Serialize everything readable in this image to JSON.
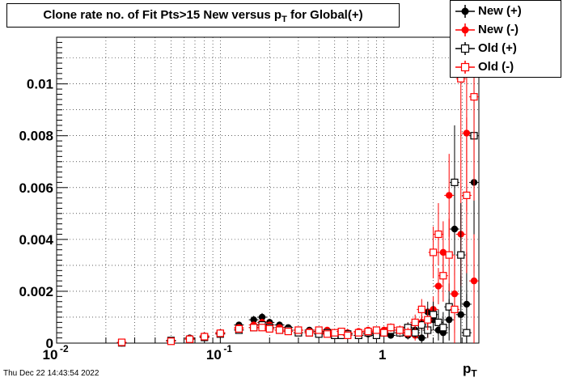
{
  "header": {
    "title_main": "Clone rate no. of Fit Pts>15 New versus p",
    "title_sub": "T",
    "title_tail": " for Global(+)"
  },
  "timestamp": "Thu Dec 22 14:43:54 2022",
  "colors": {
    "new_plus": "#000000",
    "new_minus": "#ff0000",
    "old_plus": "#000000",
    "old_minus": "#ff0000"
  },
  "chart_data": {
    "type": "scatter",
    "xlabel_main": "p",
    "xlabel_sub": "T",
    "xscale": "log",
    "xlim": [
      0.01,
      3.8
    ],
    "ylim": [
      0,
      0.0118
    ],
    "grid": true,
    "legend_position": "top-right",
    "x_ticks": [
      {
        "value": 0.01,
        "label": "10",
        "exp": "-2"
      },
      {
        "value": 0.1,
        "label": "10",
        "exp": "-1"
      },
      {
        "value": 1,
        "label": "1",
        "exp": ""
      }
    ],
    "y_ticks": [
      {
        "value": 0,
        "label": "0"
      },
      {
        "value": 0.002,
        "label": "0.002"
      },
      {
        "value": 0.004,
        "label": "0.004"
      },
      {
        "value": 0.006,
        "label": "0.006"
      },
      {
        "value": 0.008,
        "label": "0.008"
      },
      {
        "value": 0.01,
        "label": "0.01"
      }
    ],
    "series": [
      {
        "name": "New (+)",
        "marker": "filled-circle",
        "color": "#000000",
        "points": [
          {
            "x": 0.025,
            "y": 0.0,
            "err": 2e-05
          },
          {
            "x": 0.05,
            "y": 0.0001,
            "err": 3e-05
          },
          {
            "x": 0.065,
            "y": 0.0002,
            "err": 5e-05
          },
          {
            "x": 0.08,
            "y": 0.00025,
            "err": 5e-05
          },
          {
            "x": 0.1,
            "y": 0.0004,
            "err": 8e-05
          },
          {
            "x": 0.13,
            "y": 0.0007,
            "err": 0.00012
          },
          {
            "x": 0.16,
            "y": 0.0009,
            "err": 0.00015
          },
          {
            "x": 0.18,
            "y": 0.001,
            "err": 0.00016
          },
          {
            "x": 0.2,
            "y": 0.0008,
            "err": 0.00014
          },
          {
            "x": 0.23,
            "y": 0.0007,
            "err": 0.00013
          },
          {
            "x": 0.26,
            "y": 0.0006,
            "err": 0.00012
          },
          {
            "x": 0.3,
            "y": 0.0005,
            "err": 0.00011
          },
          {
            "x": 0.35,
            "y": 0.0005,
            "err": 0.00011
          },
          {
            "x": 0.4,
            "y": 0.00045,
            "err": 0.0001
          },
          {
            "x": 0.45,
            "y": 0.0004,
            "err": 0.0001
          },
          {
            "x": 0.5,
            "y": 0.00035,
            "err": 0.0001
          },
          {
            "x": 0.55,
            "y": 0.0004,
            "err": 0.0001
          },
          {
            "x": 0.6,
            "y": 0.00035,
            "err": 0.0001
          },
          {
            "x": 0.7,
            "y": 0.0003,
            "err": 0.0001
          },
          {
            "x": 0.8,
            "y": 0.00035,
            "err": 0.00011
          },
          {
            "x": 0.9,
            "y": 0.0003,
            "err": 0.00011
          },
          {
            "x": 1.0,
            "y": 0.0004,
            "err": 0.00013
          },
          {
            "x": 1.1,
            "y": 0.0003,
            "err": 0.00013
          },
          {
            "x": 1.25,
            "y": 0.0005,
            "err": 0.00016
          },
          {
            "x": 1.4,
            "y": 0.0003,
            "err": 0.00016
          },
          {
            "x": 1.55,
            "y": 0.0005,
            "err": 0.0002
          },
          {
            "x": 1.7,
            "y": 0.0002,
            "err": 0.0002
          },
          {
            "x": 1.85,
            "y": 0.0012,
            "err": 0.0004
          },
          {
            "x": 2.0,
            "y": 0.0009,
            "err": 0.0004
          },
          {
            "x": 2.15,
            "y": 0.0005,
            "err": 0.0004
          },
          {
            "x": 2.3,
            "y": 0.0004,
            "err": 0.0006
          },
          {
            "x": 2.5,
            "y": 0.0009,
            "err": 0.0008
          },
          {
            "x": 2.7,
            "y": 0.0044,
            "err": 0.0018
          },
          {
            "x": 2.95,
            "y": 0.0011,
            "err": 0.0015
          },
          {
            "x": 3.2,
            "y": 0.0015,
            "err": 0.002
          },
          {
            "x": 3.55,
            "y": 0.0062,
            "err": 0.0035
          }
        ]
      },
      {
        "name": "New (-)",
        "marker": "filled-circle",
        "color": "#ff0000",
        "points": [
          {
            "x": 0.025,
            "y": 2e-05,
            "err": 2e-05
          },
          {
            "x": 0.05,
            "y": 8e-05,
            "err": 3e-05
          },
          {
            "x": 0.065,
            "y": 0.00018,
            "err": 5e-05
          },
          {
            "x": 0.08,
            "y": 0.00028,
            "err": 6e-05
          },
          {
            "x": 0.1,
            "y": 0.0004,
            "err": 8e-05
          },
          {
            "x": 0.13,
            "y": 0.0006,
            "err": 0.00011
          },
          {
            "x": 0.16,
            "y": 0.0007,
            "err": 0.00013
          },
          {
            "x": 0.18,
            "y": 0.0008,
            "err": 0.00014
          },
          {
            "x": 0.2,
            "y": 0.0007,
            "err": 0.00013
          },
          {
            "x": 0.23,
            "y": 0.0006,
            "err": 0.00012
          },
          {
            "x": 0.26,
            "y": 0.0005,
            "err": 0.00011
          },
          {
            "x": 0.3,
            "y": 0.0005,
            "err": 0.00011
          },
          {
            "x": 0.35,
            "y": 0.00045,
            "err": 0.0001
          },
          {
            "x": 0.4,
            "y": 0.0004,
            "err": 0.0001
          },
          {
            "x": 0.45,
            "y": 0.0005,
            "err": 0.0001
          },
          {
            "x": 0.5,
            "y": 0.0004,
            "err": 0.0001
          },
          {
            "x": 0.55,
            "y": 0.0003,
            "err": 0.0001
          },
          {
            "x": 0.6,
            "y": 0.0004,
            "err": 0.0001
          },
          {
            "x": 0.7,
            "y": 0.00045,
            "err": 0.00011
          },
          {
            "x": 0.8,
            "y": 0.0005,
            "err": 0.00012
          },
          {
            "x": 0.9,
            "y": 0.0004,
            "err": 0.00012
          },
          {
            "x": 1.0,
            "y": 0.0005,
            "err": 0.00014
          },
          {
            "x": 1.1,
            "y": 0.0006,
            "err": 0.00016
          },
          {
            "x": 1.25,
            "y": 0.0004,
            "err": 0.00016
          },
          {
            "x": 1.4,
            "y": 0.0006,
            "err": 0.0002
          },
          {
            "x": 1.55,
            "y": 0.0003,
            "err": 0.0002
          },
          {
            "x": 1.7,
            "y": 0.0008,
            "err": 0.0003
          },
          {
            "x": 1.85,
            "y": 0.0005,
            "err": 0.0003
          },
          {
            "x": 2.0,
            "y": 0.0013,
            "err": 0.0005
          },
          {
            "x": 2.15,
            "y": 0.0022,
            "err": 0.0007
          },
          {
            "x": 2.3,
            "y": 0.0035,
            "err": 0.0012
          },
          {
            "x": 2.5,
            "y": 0.0057,
            "err": 0.0016
          },
          {
            "x": 2.7,
            "y": 0.0019,
            "err": 0.0015
          },
          {
            "x": 2.95,
            "y": 0.0042,
            "err": 0.002
          },
          {
            "x": 3.2,
            "y": 0.0081,
            "err": 0.003
          },
          {
            "x": 3.55,
            "y": 0.0024,
            "err": 0.003
          }
        ]
      },
      {
        "name": "Old (+)",
        "marker": "open-square",
        "color": "#000000",
        "points": [
          {
            "x": 0.025,
            "y": 1e-05,
            "err": 2e-05
          },
          {
            "x": 0.05,
            "y": 0.0001,
            "err": 3e-05
          },
          {
            "x": 0.065,
            "y": 0.00015,
            "err": 5e-05
          },
          {
            "x": 0.08,
            "y": 0.00022,
            "err": 5e-05
          },
          {
            "x": 0.1,
            "y": 0.00035,
            "err": 8e-05
          },
          {
            "x": 0.13,
            "y": 0.0005,
            "err": 0.0001
          },
          {
            "x": 0.16,
            "y": 0.0006,
            "err": 0.00012
          },
          {
            "x": 0.18,
            "y": 0.0007,
            "err": 0.00013
          },
          {
            "x": 0.2,
            "y": 0.0006,
            "err": 0.00012
          },
          {
            "x": 0.23,
            "y": 0.0005,
            "err": 0.00011
          },
          {
            "x": 0.26,
            "y": 0.0005,
            "err": 0.00011
          },
          {
            "x": 0.3,
            "y": 0.0004,
            "err": 0.0001
          },
          {
            "x": 0.35,
            "y": 0.0004,
            "err": 0.0001
          },
          {
            "x": 0.4,
            "y": 0.00035,
            "err": 0.0001
          },
          {
            "x": 0.45,
            "y": 0.0004,
            "err": 0.0001
          },
          {
            "x": 0.5,
            "y": 0.0003,
            "err": 0.0001
          },
          {
            "x": 0.55,
            "y": 0.0003,
            "err": 0.0001
          },
          {
            "x": 0.6,
            "y": 0.00035,
            "err": 0.0001
          },
          {
            "x": 0.7,
            "y": 0.0003,
            "err": 0.0001
          },
          {
            "x": 0.8,
            "y": 0.0004,
            "err": 0.00012
          },
          {
            "x": 0.9,
            "y": 0.0003,
            "err": 0.00012
          },
          {
            "x": 1.0,
            "y": 0.0004,
            "err": 0.00013
          },
          {
            "x": 1.1,
            "y": 0.0005,
            "err": 0.00015
          },
          {
            "x": 1.25,
            "y": 0.0004,
            "err": 0.00016
          },
          {
            "x": 1.4,
            "y": 0.0006,
            "err": 0.0002
          },
          {
            "x": 1.55,
            "y": 0.0004,
            "err": 0.0002
          },
          {
            "x": 1.7,
            "y": 0.0007,
            "err": 0.0003
          },
          {
            "x": 1.85,
            "y": 0.0005,
            "err": 0.0003
          },
          {
            "x": 2.0,
            "y": 0.0011,
            "err": 0.0005
          },
          {
            "x": 2.15,
            "y": 0.0008,
            "err": 0.0005
          },
          {
            "x": 2.3,
            "y": 0.0006,
            "err": 0.0006
          },
          {
            "x": 2.5,
            "y": 0.0014,
            "err": 0.0009
          },
          {
            "x": 2.7,
            "y": 0.0062,
            "err": 0.0022
          },
          {
            "x": 2.95,
            "y": 0.0034,
            "err": 0.002
          },
          {
            "x": 3.2,
            "y": 0.0004,
            "err": 0.0015
          },
          {
            "x": 3.55,
            "y": 0.008,
            "err": 0.0038
          }
        ]
      },
      {
        "name": "Old (-)",
        "marker": "open-square",
        "color": "#ff0000",
        "points": [
          {
            "x": 0.025,
            "y": 3e-05,
            "err": 2e-05
          },
          {
            "x": 0.05,
            "y": 7e-05,
            "err": 3e-05
          },
          {
            "x": 0.065,
            "y": 0.00015,
            "err": 5e-05
          },
          {
            "x": 0.08,
            "y": 0.00025,
            "err": 6e-05
          },
          {
            "x": 0.1,
            "y": 0.00038,
            "err": 8e-05
          },
          {
            "x": 0.13,
            "y": 0.00055,
            "err": 0.0001
          },
          {
            "x": 0.16,
            "y": 0.0006,
            "err": 0.00012
          },
          {
            "x": 0.18,
            "y": 0.0006,
            "err": 0.00012
          },
          {
            "x": 0.2,
            "y": 0.00055,
            "err": 0.00012
          },
          {
            "x": 0.23,
            "y": 0.0005,
            "err": 0.00011
          },
          {
            "x": 0.26,
            "y": 0.00045,
            "err": 0.0001
          },
          {
            "x": 0.3,
            "y": 0.0005,
            "err": 0.0001
          },
          {
            "x": 0.35,
            "y": 0.0004,
            "err": 0.0001
          },
          {
            "x": 0.4,
            "y": 0.0005,
            "err": 0.0001
          },
          {
            "x": 0.45,
            "y": 0.00035,
            "err": 0.0001
          },
          {
            "x": 0.5,
            "y": 0.0004,
            "err": 0.0001
          },
          {
            "x": 0.55,
            "y": 0.00045,
            "err": 0.0001
          },
          {
            "x": 0.6,
            "y": 0.0003,
            "err": 0.0001
          },
          {
            "x": 0.7,
            "y": 0.0004,
            "err": 0.00011
          },
          {
            "x": 0.8,
            "y": 0.00045,
            "err": 0.00012
          },
          {
            "x": 0.9,
            "y": 0.0005,
            "err": 0.00013
          },
          {
            "x": 1.0,
            "y": 0.0004,
            "err": 0.00014
          },
          {
            "x": 1.1,
            "y": 0.0006,
            "err": 0.00016
          },
          {
            "x": 1.25,
            "y": 0.0005,
            "err": 0.00018
          },
          {
            "x": 1.4,
            "y": 0.0004,
            "err": 0.0002
          },
          {
            "x": 1.55,
            "y": 0.0008,
            "err": 0.0003
          },
          {
            "x": 1.7,
            "y": 0.0013,
            "err": 0.0004
          },
          {
            "x": 1.85,
            "y": 0.0009,
            "err": 0.0004
          },
          {
            "x": 2.0,
            "y": 0.0035,
            "err": 0.001
          },
          {
            "x": 2.15,
            "y": 0.0042,
            "err": 0.0012
          },
          {
            "x": 2.3,
            "y": 0.0026,
            "err": 0.001
          },
          {
            "x": 2.5,
            "y": 0.0034,
            "err": 0.0014
          },
          {
            "x": 2.7,
            "y": 0.0013,
            "err": 0.0014
          },
          {
            "x": 2.95,
            "y": 0.0102,
            "err": 0.004
          },
          {
            "x": 3.2,
            "y": 0.0057,
            "err": 0.003
          },
          {
            "x": 3.55,
            "y": 0.0095,
            "err": 0.004
          }
        ]
      }
    ]
  }
}
